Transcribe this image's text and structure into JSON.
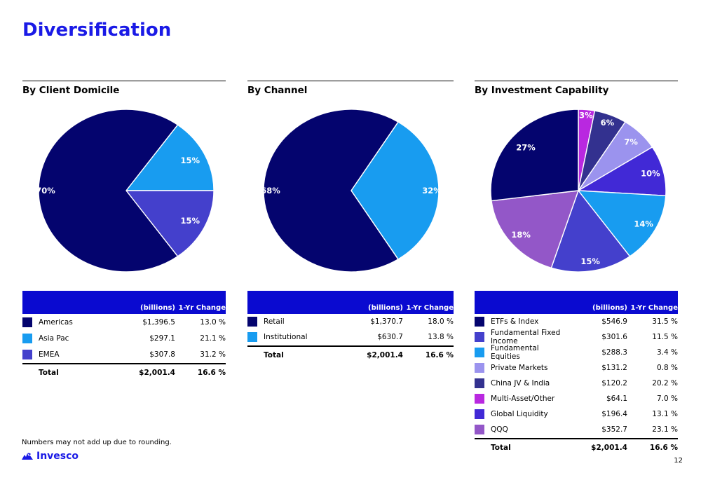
{
  "page": {
    "title": "Diversification",
    "footnote": "Numbers may not add up due to rounding.",
    "brand": "Invesco",
    "page_number": "12"
  },
  "colors": {
    "title_blue": "#1a1ae6",
    "table_header_blue": "#0a0ad0",
    "slice_border": "#ffffff"
  },
  "table": {
    "value_header": "(billions)",
    "change_header": "1-Yr Change",
    "total_label": "Total"
  },
  "chart_data": [
    {
      "type": "pie",
      "title": "By Client Domicile",
      "total": {
        "value": "$2,001.4",
        "change": "16.6 %"
      },
      "layout": {
        "start_angle_deg": 36,
        "draw_order": [
          1,
          2,
          0
        ],
        "label_color": "#ffffff"
      },
      "slices": [
        {
          "label": "Americas",
          "pct": 70,
          "pct_label": "70%",
          "value": "$1,396.5",
          "change": "13.0 %",
          "color": "#04046e",
          "label_r": 0.92
        },
        {
          "label": "Asia Pac",
          "pct": 15,
          "pct_label": "15%",
          "value": "$297.1",
          "change": "21.1 %",
          "color": "#189cf0",
          "label_r": 0.82
        },
        {
          "label": "EMEA",
          "pct": 15,
          "pct_label": "15%",
          "value": "$307.8",
          "change": "31.2 %",
          "color": "#4440cc",
          "label_r": 0.82
        }
      ]
    },
    {
      "type": "pie",
      "title": "By Channel",
      "total": {
        "value": "$2,001.4",
        "change": "16.6 %"
      },
      "layout": {
        "start_angle_deg": 32.4,
        "draw_order": [
          1,
          0
        ],
        "label_color": "#ffffff"
      },
      "slices": [
        {
          "label": "Retail",
          "pct": 68,
          "pct_label": "68%",
          "value": "$1,370.7",
          "change": "18.0 %",
          "color": "#04046e",
          "label_r": 0.92
        },
        {
          "label": "Institutional",
          "pct": 32,
          "pct_label": "32%",
          "value": "$630.7",
          "change": "13.8 %",
          "color": "#189cf0",
          "label_r": 0.92
        }
      ]
    },
    {
      "type": "pie",
      "title": "By Investment Capability",
      "total": {
        "value": "$2,001.4",
        "change": "16.6 %"
      },
      "layout": {
        "start_angle_deg": 0,
        "draw_order": [
          5,
          4,
          3,
          6,
          2,
          1,
          7,
          0
        ],
        "label_color": "#ffffff"
      },
      "slices": [
        {
          "label": "ETFs & Index",
          "pct": 27,
          "pct_label": "27%",
          "value": "$546.9",
          "change": "31.5 %",
          "color": "#04046e",
          "label_r": 0.8
        },
        {
          "label": "Fundamental Fixed Income",
          "pct": 15,
          "pct_label": "15%",
          "value": "$301.6",
          "change": "11.5 %",
          "color": "#4440cc",
          "label_r": 0.88
        },
        {
          "label": "Fundamental Equities",
          "pct": 14,
          "pct_label": "14%",
          "value": "$288.3",
          "change": "3.4 %",
          "color": "#189cf0",
          "label_r": 0.85
        },
        {
          "label": "Private Markets",
          "pct": 7,
          "pct_label": "7%",
          "value": "$131.2",
          "change": "0.8 %",
          "color": "#9b93ee",
          "label_r": 0.85
        },
        {
          "label": "China JV & India",
          "pct": 6,
          "pct_label": "6%",
          "value": "$120.2",
          "change": "20.2 %",
          "color": "#33318f",
          "label_r": 0.9
        },
        {
          "label": "Multi-Asset/Other",
          "pct": 3,
          "pct_label": "3%",
          "value": "$64.1",
          "change": "7.0 %",
          "color": "#b928e0",
          "label_r": 0.93
        },
        {
          "label": "Global Liquidity",
          "pct": 10,
          "pct_label": "10%",
          "value": "$196.4",
          "change": "13.1 %",
          "color": "#4129d6",
          "label_r": 0.85
        },
        {
          "label": "QQQ",
          "pct": 18,
          "pct_label": "18%",
          "value": "$352.7",
          "change": "23.1 %",
          "color": "#9357c8",
          "label_r": 0.85
        }
      ]
    }
  ]
}
